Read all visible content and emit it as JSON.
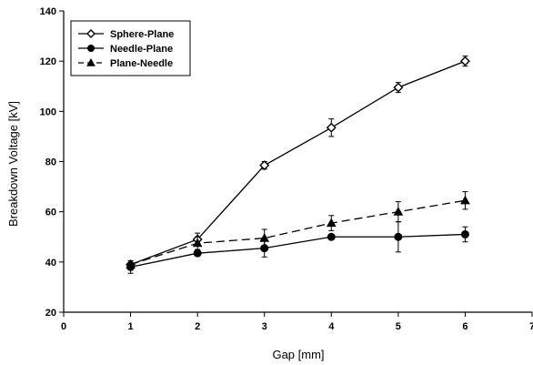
{
  "chart_data": {
    "type": "line",
    "title": "",
    "xlabel": "Gap [mm]",
    "ylabel": "Breakdown Voltage [kV]",
    "xlim": [
      0,
      7
    ],
    "ylim": [
      20,
      140
    ],
    "xticks": [
      0,
      1,
      2,
      3,
      4,
      5,
      6,
      7
    ],
    "yticks": [
      20,
      40,
      60,
      80,
      100,
      120,
      140
    ],
    "grid": false,
    "legend_position": "top-left",
    "x": [
      1,
      2,
      3,
      4,
      5,
      6
    ],
    "series": [
      {
        "name": "Sphere-Plane",
        "marker": "open-diamond",
        "line_style": "solid",
        "values": [
          39,
          49,
          78.5,
          93.5,
          109.5,
          120
        ],
        "error": [
          1.5,
          2.5,
          1.5,
          3.5,
          2,
          2
        ]
      },
      {
        "name": "Needle-Plane",
        "marker": "filled-circle",
        "line_style": "solid",
        "values": [
          38,
          43.5,
          45.5,
          50,
          50,
          51
        ],
        "error": [
          2.5,
          1,
          3.5,
          1,
          6,
          3
        ]
      },
      {
        "name": "Plane-Needle",
        "marker": "filled-triangle",
        "line_style": "dashed",
        "values": [
          39,
          47.5,
          49.5,
          55.5,
          60,
          64.5
        ],
        "error": [
          1.5,
          2.5,
          3.5,
          3,
          4,
          3.5
        ]
      }
    ]
  }
}
